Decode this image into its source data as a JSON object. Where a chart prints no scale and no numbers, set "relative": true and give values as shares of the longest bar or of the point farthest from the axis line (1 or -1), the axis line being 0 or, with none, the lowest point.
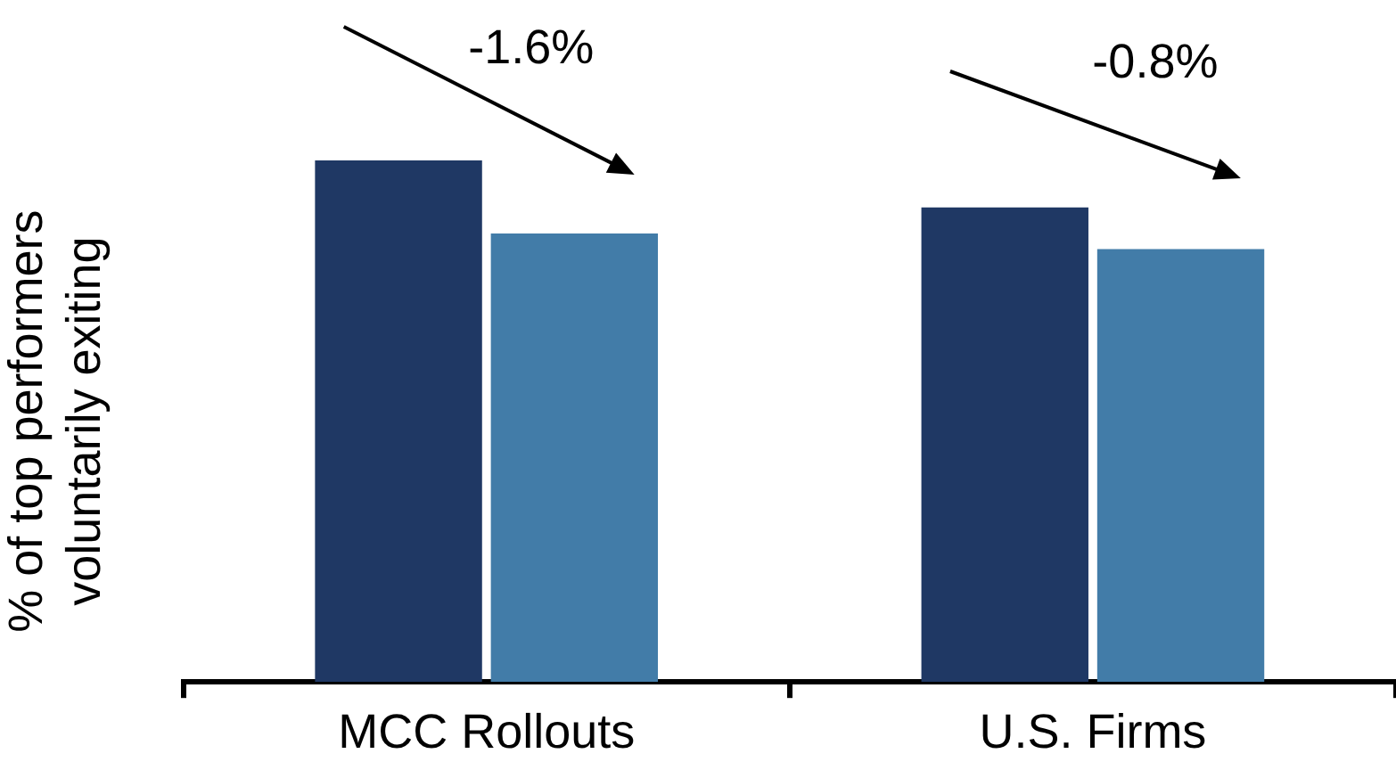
{
  "chart_data": {
    "type": "bar",
    "relative": true,
    "ylabel": "% of top performers\nvoluntarily exiting",
    "categories": [
      "MCC Rollouts",
      "U.S. Firms"
    ],
    "series": [
      {
        "color": "#1f3864",
        "values": [
          1,
          0.91
        ]
      },
      {
        "color": "#427ca8",
        "values": [
          0.86,
          0.83
        ]
      }
    ],
    "annotations": [
      "-1.6%",
      "-0.8%"
    ]
  }
}
